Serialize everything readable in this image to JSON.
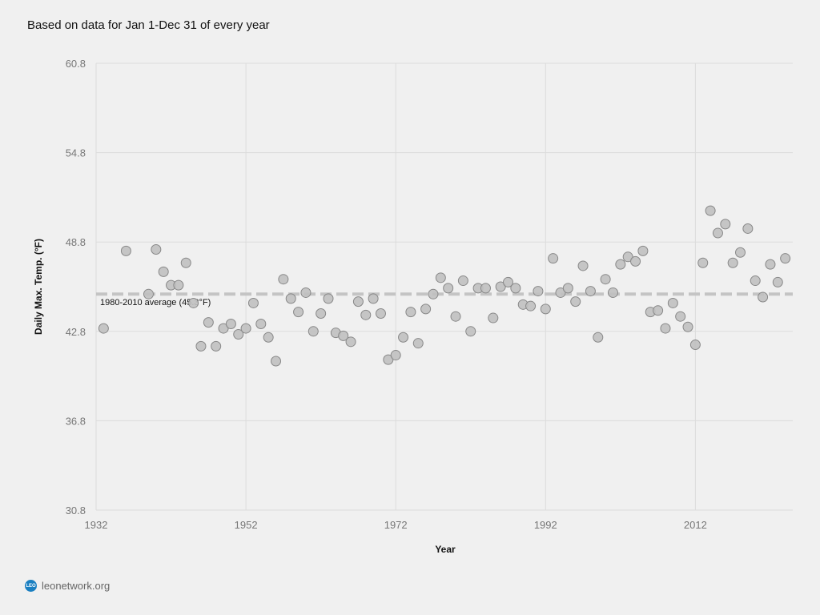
{
  "subtitle": "Based on data for Jan 1-Dec 31 of every year",
  "footer": {
    "logo_text": "LEO",
    "site": "leonetwork.org"
  },
  "colors": {
    "point_fill": "#c0c0c0",
    "point_stroke": "#888888",
    "avg_line": "#c4c4c4",
    "grid": "#dcdcdc"
  },
  "chart_data": {
    "type": "scatter",
    "xlabel": "Year",
    "ylabel": "Daily Max. Temp. (°F)",
    "xlim": [
      1932,
      2025
    ],
    "ylim": [
      30.8,
      60.8
    ],
    "x_ticks": [
      1932,
      1952,
      1972,
      1992,
      2012
    ],
    "y_ticks": [
      30.8,
      36.8,
      42.8,
      48.8,
      54.8,
      60.8
    ],
    "grid": true,
    "reference_line": {
      "value": 45.3,
      "label": "1980-2010 average (45.3°F)"
    },
    "x": [
      1933,
      1936,
      1939,
      1940,
      1941,
      1942,
      1943,
      1944,
      1945,
      1946,
      1947,
      1948,
      1949,
      1950,
      1951,
      1952,
      1953,
      1954,
      1955,
      1956,
      1957,
      1958,
      1959,
      1960,
      1961,
      1962,
      1963,
      1964,
      1965,
      1966,
      1967,
      1968,
      1969,
      1970,
      1971,
      1972,
      1973,
      1974,
      1975,
      1976,
      1977,
      1978,
      1979,
      1980,
      1981,
      1982,
      1983,
      1984,
      1985,
      1986,
      1987,
      1988,
      1989,
      1990,
      1991,
      1992,
      1993,
      1994,
      1995,
      1996,
      1997,
      1998,
      1999,
      2000,
      2001,
      2002,
      2003,
      2004,
      2005,
      2006,
      2007,
      2008,
      2009,
      2010,
      2011,
      2012,
      2013,
      2014,
      2015,
      2016,
      2017,
      2018,
      2019,
      2020,
      2021,
      2022,
      2023,
      2024
    ],
    "y": [
      43.0,
      48.2,
      45.3,
      48.3,
      46.8,
      45.9,
      45.9,
      47.4,
      44.7,
      41.8,
      43.4,
      41.8,
      43.0,
      43.3,
      42.6,
      43.0,
      44.7,
      43.3,
      42.4,
      40.8,
      46.3,
      45.0,
      44.1,
      45.4,
      42.8,
      44.0,
      45.0,
      42.7,
      42.5,
      42.1,
      44.8,
      43.9,
      45.0,
      44.0,
      40.9,
      41.2,
      42.4,
      44.1,
      42.0,
      44.3,
      45.3,
      46.4,
      45.7,
      43.8,
      46.2,
      42.8,
      45.7,
      45.7,
      43.7,
      45.8,
      46.1,
      45.7,
      44.6,
      44.5,
      45.5,
      44.3,
      47.7,
      45.4,
      45.7,
      44.8,
      47.2,
      45.5,
      42.4,
      46.3,
      45.4,
      47.3,
      47.8,
      47.5,
      48.2,
      44.1,
      44.2,
      43.0,
      44.7,
      43.8,
      43.1,
      41.9,
      47.4,
      50.9,
      49.4,
      50.0,
      47.4,
      48.1,
      49.7,
      46.2,
      45.1,
      47.3,
      46.1,
      47.7
    ]
  }
}
